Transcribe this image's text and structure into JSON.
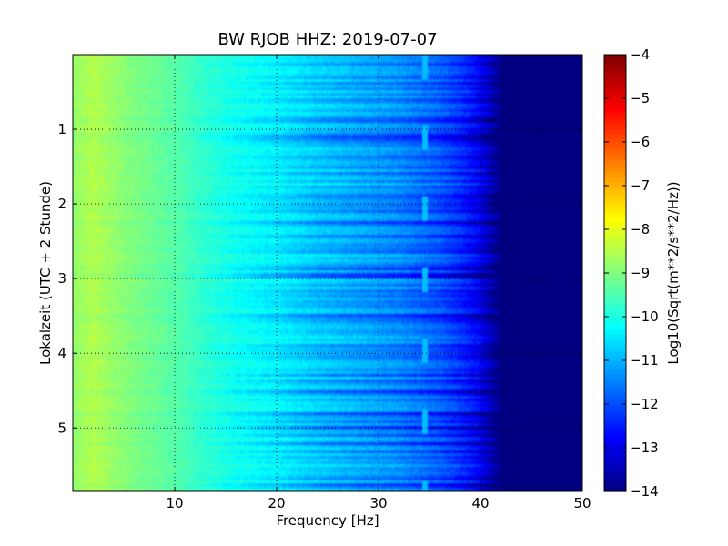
{
  "chart_data": {
    "type": "heatmap",
    "title": "BW RJOB HHZ: 2019-07-07",
    "xlabel": "Frequency [Hz]",
    "ylabel": "Lokalzeit (UTC + 2 Stunde)",
    "xlim": [
      0,
      50
    ],
    "ylim": [
      0,
      5.85
    ],
    "y_inverted": true,
    "x_ticks": [
      10,
      20,
      30,
      40,
      50
    ],
    "y_ticks": [
      1,
      2,
      3,
      4,
      5
    ],
    "x_tick_labels": [
      "10",
      "20",
      "30",
      "40",
      "50"
    ],
    "y_tick_labels": [
      "1",
      "2",
      "3",
      "4",
      "5"
    ],
    "grid": true,
    "colormap": "jet",
    "colorbar": {
      "label": "Log10(Sqrt(m**2/s**2/Hz))",
      "range": [
        -14,
        -4
      ],
      "ticks": [
        -4,
        -5,
        -6,
        -7,
        -8,
        -9,
        -10,
        -11,
        -12,
        -13,
        -14
      ],
      "tick_labels": [
        "−4",
        "−5",
        "−6",
        "−7",
        "−8",
        "−9",
        "−10",
        "−11",
        "−12",
        "−13",
        "−14"
      ]
    },
    "spectrum_profile": {
      "frequency_hz": [
        0,
        2,
        5,
        8,
        10,
        13,
        16,
        20,
        24,
        28,
        32,
        36,
        38,
        40,
        41,
        42,
        50
      ],
      "log10_amplitude": [
        -8.8,
        -8.5,
        -8.9,
        -9.2,
        -9.4,
        -9.8,
        -10.1,
        -10.4,
        -10.8,
        -11.1,
        -11.4,
        -11.9,
        -12.3,
        -12.9,
        -13.5,
        -14.0,
        -14.0
      ]
    },
    "spectral_line": {
      "frequency_hz": 34.5,
      "log10_amplitude": -10.9
    }
  }
}
